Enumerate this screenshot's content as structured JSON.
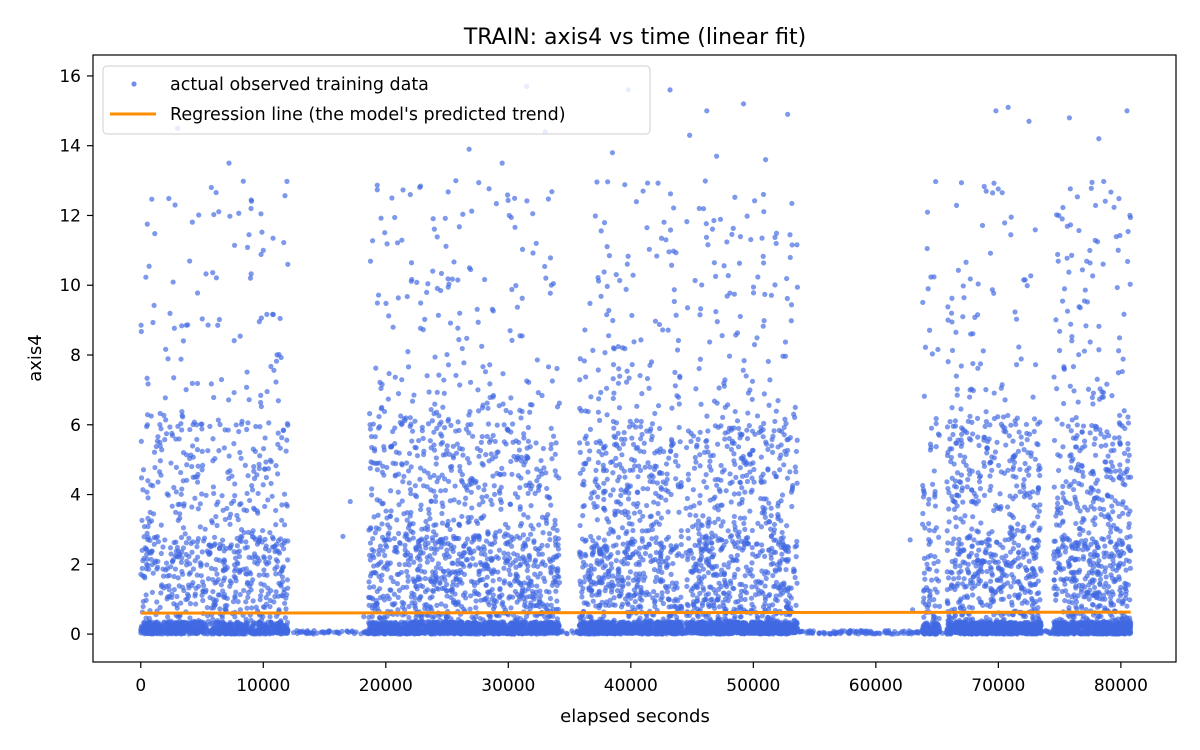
{
  "chart_data": {
    "type": "scatter",
    "title": "TRAIN: axis4 vs time (linear fit)",
    "xlabel": "elapsed seconds",
    "ylabel": "axis4",
    "xlim": [
      -3900,
      84500
    ],
    "ylim": [
      -0.8,
      16.6
    ],
    "xticks": [
      0,
      10000,
      20000,
      30000,
      40000,
      50000,
      60000,
      70000,
      80000
    ],
    "yticks": [
      0,
      2,
      4,
      6,
      8,
      10,
      12,
      14,
      16
    ],
    "grid": false,
    "legend_position": "upper-left",
    "colors": {
      "scatter": "#4169e1",
      "line": "#ff8c00"
    },
    "series": [
      {
        "name": "actual observed training data",
        "kind": "scatter",
        "segments": [
          {
            "x_range": [
              0,
              12000
            ],
            "points_per_segment": 1300,
            "seed": 11
          },
          {
            "x_range": [
              18600,
              34200
            ],
            "points_per_segment": 2300,
            "seed": 22
          },
          {
            "x_range": [
              35800,
              44200
            ],
            "points_per_segment": 1300,
            "seed": 33
          },
          {
            "x_range": [
              44500,
              53600
            ],
            "points_per_segment": 1400,
            "seed": 44
          },
          {
            "x_range": [
              63800,
              65200
            ],
            "points_per_segment": 160,
            "seed": 55
          },
          {
            "x_range": [
              65800,
              73500
            ],
            "points_per_segment": 1200,
            "seed": 66
          },
          {
            "x_range": [
              74500,
              80800
            ],
            "points_per_segment": 1100,
            "seed": 77
          }
        ],
        "baseline_range": [
          0,
          80800
        ],
        "baseline_value": 0.1,
        "outliers": [
          [
            3000,
            14.5
          ],
          [
            2800,
            12.3
          ],
          [
            7200,
            13.5
          ],
          [
            9000,
            12.2
          ],
          [
            10000,
            11.0
          ],
          [
            12000,
            10.6
          ],
          [
            20500,
            12.5
          ],
          [
            22000,
            12.6
          ],
          [
            26800,
            13.9
          ],
          [
            29500,
            13.5
          ],
          [
            31500,
            15.7
          ],
          [
            33000,
            14.4
          ],
          [
            38500,
            13.8
          ],
          [
            39800,
            15.6
          ],
          [
            41000,
            12.7
          ],
          [
            43200,
            15.6
          ],
          [
            44800,
            14.3
          ],
          [
            46200,
            15.0
          ],
          [
            47000,
            13.7
          ],
          [
            49200,
            15.2
          ],
          [
            51000,
            13.6
          ],
          [
            52800,
            14.9
          ],
          [
            69800,
            15.0
          ],
          [
            70800,
            15.1
          ],
          [
            72500,
            14.7
          ],
          [
            75800,
            14.8
          ],
          [
            78200,
            14.2
          ],
          [
            80500,
            15.0
          ],
          [
            16500,
            2.8
          ],
          [
            17100,
            3.8
          ],
          [
            62800,
            2.7
          ],
          [
            63000,
            0.7
          ],
          [
            18200,
            0.5
          ]
        ]
      },
      {
        "name": "Regression line (the model's predicted trend)",
        "kind": "line",
        "x": [
          0,
          80800
        ],
        "y": [
          0.6,
          0.63
        ]
      }
    ]
  }
}
